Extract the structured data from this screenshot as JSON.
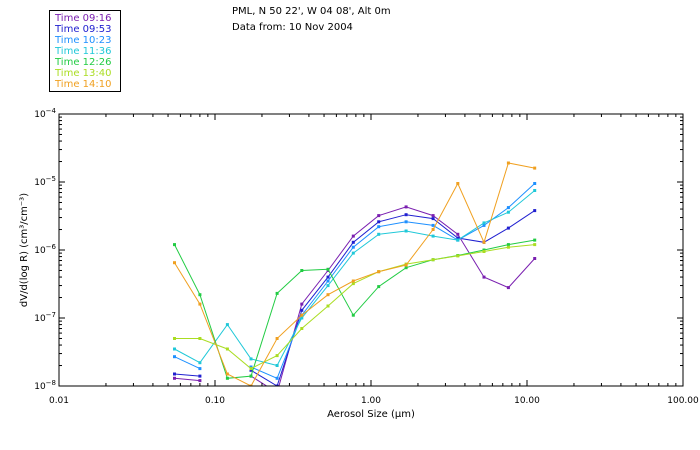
{
  "header": {
    "location": "PML, N 50 22', W 04 08', Alt 0m",
    "date": "Data from: 10 Nov 2004"
  },
  "chart_data": {
    "type": "line",
    "xscale": "log",
    "yscale": "log",
    "xlabel": "Aerosol Size (μm)",
    "ylabel": "dV/d(log R)  (cm³/cm⁻³)",
    "xlim": [
      0.01,
      100
    ],
    "ylim": [
      1e-08,
      0.0001
    ],
    "xticks": [
      {
        "value": 0.01,
        "label": "0.01"
      },
      {
        "value": 0.1,
        "label": "0.10"
      },
      {
        "value": 1,
        "label": "1.00"
      },
      {
        "value": 10,
        "label": "10.00"
      },
      {
        "value": 100,
        "label": "100.00"
      }
    ],
    "yticks": [
      {
        "value": 1e-08,
        "base": "10",
        "exp": "−8"
      },
      {
        "value": 1e-07,
        "base": "10",
        "exp": "−7"
      },
      {
        "value": 1e-06,
        "base": "10",
        "exp": "−6"
      },
      {
        "value": 1e-05,
        "base": "10",
        "exp": "−5"
      },
      {
        "value": 0.0001,
        "base": "10",
        "exp": "−4"
      }
    ],
    "grid": false,
    "legend_position": "top-left",
    "x": [
      0.055,
      0.08,
      0.12,
      0.17,
      0.25,
      0.36,
      0.53,
      0.77,
      1.12,
      1.68,
      2.5,
      3.6,
      5.3,
      7.6,
      11.2
    ],
    "series": [
      {
        "name": "Time 09:16",
        "color": "#7a1fb0",
        "values": [
          1.3e-08,
          1.2e-08,
          null,
          1.4e-08,
          8e-09,
          1.6e-07,
          5e-07,
          1.6e-06,
          3.2e-06,
          4.3e-06,
          3.2e-06,
          1.7e-06,
          4e-07,
          2.8e-07,
          7.5e-07
        ]
      },
      {
        "name": "Time 09:53",
        "color": "#2020d0",
        "values": [
          1.5e-08,
          1.4e-08,
          null,
          1.7e-08,
          1e-08,
          1.3e-07,
          4e-07,
          1.3e-06,
          2.6e-06,
          3.3e-06,
          2.9e-06,
          1.5e-06,
          1.3e-06,
          2.1e-06,
          3.8e-06
        ]
      },
      {
        "name": "Time 10:23",
        "color": "#1e90ff",
        "values": [
          2.7e-08,
          1.8e-08,
          null,
          1.9e-08,
          1.3e-08,
          1.1e-07,
          3.5e-07,
          1.1e-06,
          2.2e-06,
          2.6e-06,
          2.3e-06,
          1.4e-06,
          2.3e-06,
          4.2e-06,
          9.5e-06
        ]
      },
      {
        "name": "Time 11:36",
        "color": "#20c8d8",
        "values": [
          3.5e-08,
          2.2e-08,
          8e-08,
          2.5e-08,
          2e-08,
          1e-07,
          3e-07,
          9e-07,
          1.7e-06,
          1.9e-06,
          1.6e-06,
          1.4e-06,
          2.5e-06,
          3.6e-06,
          7.5e-06
        ]
      },
      {
        "name": "Time 12:26",
        "color": "#22cc44",
        "values": [
          1.2e-06,
          2.2e-07,
          1.3e-08,
          1.4e-08,
          2.3e-07,
          5e-07,
          5.2e-07,
          1.1e-07,
          2.9e-07,
          5.5e-07,
          7.2e-07,
          8.3e-07,
          1e-06,
          1.2e-06,
          1.4e-06
        ]
      },
      {
        "name": "Time 13:40",
        "color": "#aadd22",
        "values": [
          5e-08,
          5e-08,
          3.5e-08,
          1.8e-08,
          2.8e-08,
          7e-08,
          1.5e-07,
          3.2e-07,
          4.8e-07,
          6.2e-07,
          7.2e-07,
          8.2e-07,
          9.5e-07,
          1.1e-06,
          1.2e-06
        ]
      },
      {
        "name": "Time 14:10",
        "color": "#f0a020",
        "values": [
          6.5e-07,
          1.6e-07,
          1.5e-08,
          1e-08,
          5e-08,
          1.1e-07,
          2.2e-07,
          3.5e-07,
          4.8e-07,
          6e-07,
          2e-06,
          9.5e-06,
          1.3e-06,
          1.9e-05,
          1.6e-05
        ]
      }
    ]
  }
}
